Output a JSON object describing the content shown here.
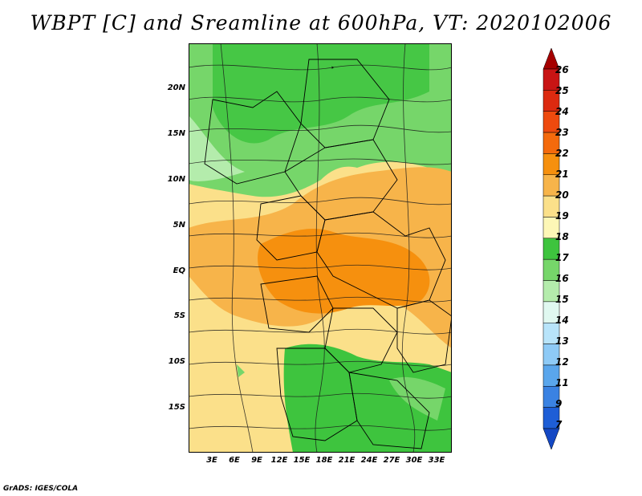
{
  "title": "WBPT [C] and Sreamline at 600hPa, VT: 2020102006",
  "credit": "GrADS: IGES/COLA",
  "lat_labels": [
    "20N",
    "15N",
    "10N",
    "5N",
    "EQ",
    "5S",
    "10S",
    "15S"
  ],
  "lon_labels": [
    "3E",
    "6E",
    "9E",
    "12E",
    "15E",
    "18E",
    "21E",
    "24E",
    "27E",
    "30E",
    "33E"
  ],
  "colorbar": {
    "labels": [
      "26",
      "25",
      "24",
      "23",
      "22",
      "21",
      "20",
      "19",
      "18",
      "17",
      "16",
      "15",
      "14",
      "13",
      "12",
      "11",
      "9",
      "7"
    ],
    "colors": [
      "#a50000",
      "#c81414",
      "#dc2a10",
      "#ee4a0e",
      "#f46a0c",
      "#f6900e",
      "#f7b44a",
      "#fbe08a",
      "#fdf7b6",
      "#3ec43e",
      "#76d66a",
      "#b4ecac",
      "#e0f8f0",
      "#b8e4fa",
      "#8ecaf6",
      "#5aa6ec",
      "#3a82e2",
      "#1e5ed6",
      "#1448c4"
    ]
  }
}
